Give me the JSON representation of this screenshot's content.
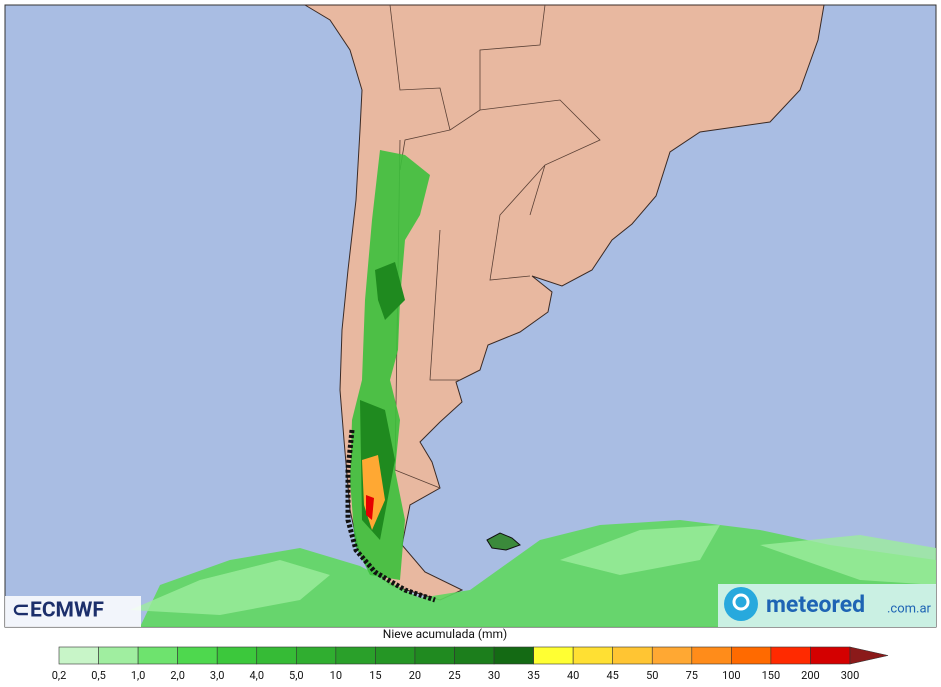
{
  "logos": {
    "ecmwf": "ECMWF",
    "meteored": "meteored",
    "domain": ".com.ar"
  },
  "legend": {
    "title": "Nieve acumulada (mm)",
    "labels": [
      "0,2",
      "0,5",
      "1,0",
      "2,0",
      "3,0",
      "4,0",
      "5,0",
      "10",
      "15",
      "20",
      "25",
      "30",
      "35",
      "40",
      "45",
      "50",
      "75",
      "100",
      "150",
      "200",
      "300"
    ],
    "colors": [
      "#c8f5c8",
      "#a0eea0",
      "#6ee36e",
      "#4ed84e",
      "#3cc83c",
      "#36bb36",
      "#30ae30",
      "#2aa02a",
      "#259625",
      "#208a20",
      "#1c7e1c",
      "#146a14",
      "#ffff33",
      "#ffe033",
      "#ffc533",
      "#ffa833",
      "#ff8c1a",
      "#ff6a00",
      "#ff2a00",
      "#d40000"
    ],
    "arrow_color": "#8b1a1a"
  }
}
